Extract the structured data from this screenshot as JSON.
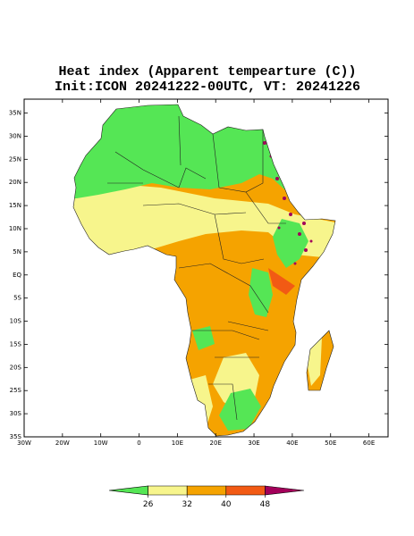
{
  "map": {
    "title": "Heat index (Apparent tempearture (C))",
    "subtitle": "Init:ICON 20241222-00UTC, VT: 20241226",
    "xlim": [
      -30,
      65
    ],
    "ylim": [
      -35,
      38
    ],
    "xticks": [
      {
        "value": -30,
        "label": "30W"
      },
      {
        "value": -20,
        "label": "20W"
      },
      {
        "value": -10,
        "label": "10W"
      },
      0,
      {
        "value": 10,
        "label": "10E"
      },
      {
        "value": 20,
        "label": "20E"
      },
      {
        "value": 30,
        "label": "30E"
      },
      {
        "value": 40,
        "label": "40E"
      },
      {
        "value": 50,
        "label": "50E"
      },
      {
        "value": 60,
        "label": "60E"
      }
    ],
    "yticks": [
      {
        "value": -35,
        "label": "35S"
      },
      {
        "value": -30,
        "label": "30S"
      },
      {
        "value": -25,
        "label": "25S"
      },
      {
        "value": -20,
        "label": "20S"
      },
      {
        "value": -15,
        "label": "15S"
      },
      {
        "value": -10,
        "label": "10S"
      },
      {
        "value": -5,
        "label": "5S"
      },
      {
        "value": 0,
        "label": "EQ"
      },
      {
        "value": 5,
        "label": "5N"
      },
      {
        "value": 10,
        "label": "10N"
      },
      {
        "value": 15,
        "label": "15N"
      },
      {
        "value": 20,
        "label": "20N"
      },
      {
        "value": 25,
        "label": "25N"
      },
      {
        "value": 30,
        "label": "30N"
      },
      {
        "value": 35,
        "label": "35N"
      }
    ],
    "colorbar": {
      "colors": [
        "#55e655",
        "#f7f58c",
        "#f5a300",
        "#f25a14",
        "#a3005a"
      ],
      "ticks": [
        26,
        32,
        40,
        48
      ]
    }
  }
}
